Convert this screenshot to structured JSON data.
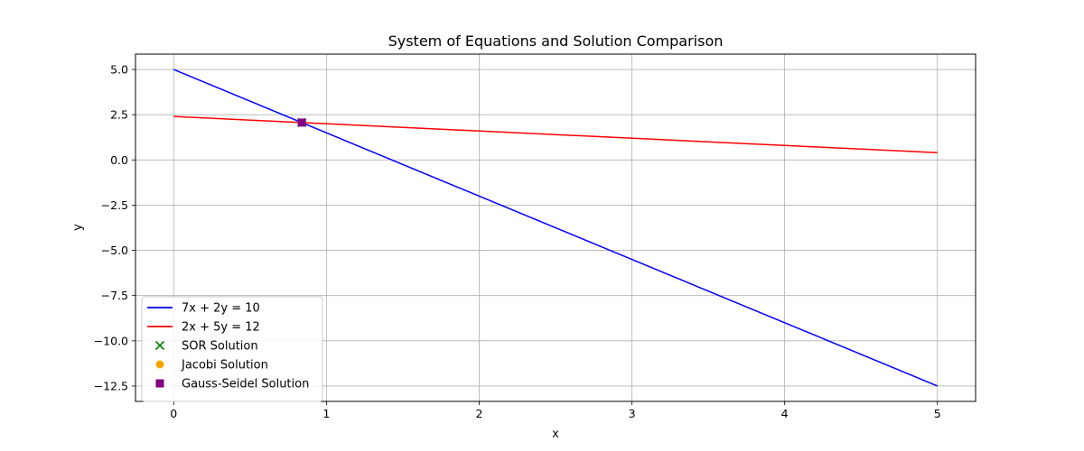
{
  "chart_data": {
    "type": "line",
    "title": "System of Equations and Solution Comparison",
    "xlabel": "x",
    "ylabel": "y",
    "xlim": [
      -0.25,
      5.25
    ],
    "ylim": [
      -13.35,
      5.85
    ],
    "grid": true,
    "legend_position": "lower-left",
    "x_ticks": [
      0,
      1,
      2,
      3,
      4,
      5
    ],
    "x_tick_labels": [
      "0",
      "1",
      "2",
      "3",
      "4",
      "5"
    ],
    "y_ticks": [
      5.0,
      2.5,
      0.0,
      -2.5,
      -5.0,
      -7.5,
      -10.0,
      -12.5
    ],
    "y_tick_labels": [
      "5.0",
      "2.5",
      "0.0",
      "−2.5",
      "−5.0",
      "−7.5",
      "−10.0",
      "−12.5"
    ],
    "series": [
      {
        "name": "7x + 2y = 10",
        "kind": "line",
        "color": "#0000ff",
        "x": [
          0,
          5
        ],
        "y": [
          5.0,
          -12.5
        ]
      },
      {
        "name": "2x + 5y = 12",
        "kind": "line",
        "color": "#ff0000",
        "x": [
          0,
          5
        ],
        "y": [
          2.4,
          0.4
        ]
      },
      {
        "name": "SOR Solution",
        "kind": "scatter",
        "marker": "x",
        "color": "#008000",
        "x": [
          0.839
        ],
        "y": [
          2.065
        ]
      },
      {
        "name": "Jacobi Solution",
        "kind": "scatter",
        "marker": "circle",
        "color": "#ffa500",
        "x": [
          0.839
        ],
        "y": [
          2.065
        ]
      },
      {
        "name": "Gauss-Seidel Solution",
        "kind": "scatter",
        "marker": "square",
        "color": "#800080",
        "x": [
          0.839
        ],
        "y": [
          2.065
        ]
      }
    ]
  }
}
